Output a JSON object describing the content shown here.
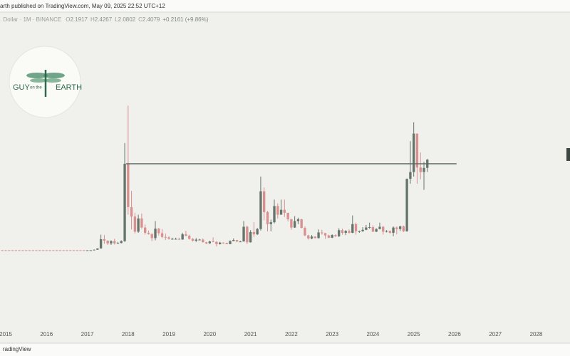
{
  "chart_data": {
    "type": "candlestick",
    "header": "arth published on TradingView.com, May 09, 2025 22:52 UTC+12",
    "symbol": ". Dollar · 1M · BINANCE",
    "ohlc_labels": [
      "O",
      "H",
      "L",
      "C"
    ],
    "ohlc_values": [
      2.1917,
      2.4267,
      2.0802,
      2.4079
    ],
    "change": "+0.2161 (+9.86%)",
    "logo": {
      "left": "GUY",
      "middle": "on the",
      "right": "EARTH"
    },
    "footer": "radingView",
    "up_color": "#66756b",
    "down_color": "#d9908f",
    "xlim": [
      2014.86,
      2028.83
    ],
    "xticks": [
      2015,
      2016,
      2017,
      2018,
      2019,
      2020,
      2021,
      2022,
      2023,
      2024,
      2025,
      2026,
      2027,
      2028
    ],
    "ylim": [
      -2.04,
      6.3
    ],
    "hline": {
      "value": 2.3,
      "x": [
        2017.95,
        2026.05
      ],
      "color": "#5e6b64"
    },
    "x": [
      2014.917,
      2015.0,
      2015.083,
      2015.167,
      2015.25,
      2015.333,
      2015.417,
      2015.5,
      2015.583,
      2015.667,
      2015.75,
      2015.833,
      2015.917,
      2016.0,
      2016.083,
      2016.167,
      2016.25,
      2016.333,
      2016.417,
      2016.5,
      2016.583,
      2016.667,
      2016.75,
      2016.833,
      2016.917,
      2017.0,
      2017.083,
      2017.167,
      2017.25,
      2017.333,
      2017.417,
      2017.5,
      2017.583,
      2017.667,
      2017.75,
      2017.833,
      2017.917,
      2018.0,
      2018.083,
      2018.167,
      2018.25,
      2018.333,
      2018.417,
      2018.5,
      2018.583,
      2018.667,
      2018.75,
      2018.833,
      2018.917,
      2019.0,
      2019.083,
      2019.167,
      2019.25,
      2019.333,
      2019.417,
      2019.5,
      2019.583,
      2019.667,
      2019.75,
      2019.833,
      2019.917,
      2020.0,
      2020.083,
      2020.167,
      2020.25,
      2020.333,
      2020.417,
      2020.5,
      2020.583,
      2020.667,
      2020.75,
      2020.833,
      2020.917,
      2021.0,
      2021.083,
      2021.167,
      2021.25,
      2021.333,
      2021.417,
      2021.5,
      2021.583,
      2021.667,
      2021.75,
      2021.833,
      2021.917,
      2022.0,
      2022.083,
      2022.167,
      2022.25,
      2022.333,
      2022.417,
      2022.5,
      2022.583,
      2022.667,
      2022.75,
      2022.833,
      2022.917,
      2023.0,
      2023.083,
      2023.167,
      2023.25,
      2023.333,
      2023.417,
      2023.5,
      2023.583,
      2023.667,
      2023.75,
      2023.833,
      2023.917,
      2024.0,
      2024.083,
      2024.167,
      2024.25,
      2024.333,
      2024.417,
      2024.5,
      2024.583,
      2024.667,
      2024.75,
      2024.833,
      2024.917,
      2025.0,
      2025.083,
      2025.167,
      2025.25,
      2025.333
    ],
    "open": [
      0.009,
      0.009,
      0.009,
      0.009,
      0.009,
      0.009,
      0.009,
      0.009,
      0.009,
      0.009,
      0.009,
      0.009,
      0.009,
      0.009,
      0.009,
      0.009,
      0.009,
      0.009,
      0.009,
      0.009,
      0.009,
      0.009,
      0.009,
      0.009,
      0.009,
      0.006,
      0.007,
      0.008,
      0.022,
      0.055,
      0.3,
      0.26,
      0.19,
      0.25,
      0.19,
      0.2,
      0.25,
      2.3,
      1.15,
      0.9,
      0.5,
      0.85,
      0.61,
      0.47,
      0.44,
      0.33,
      0.58,
      0.46,
      0.36,
      0.35,
      0.31,
      0.31,
      0.31,
      0.29,
      0.43,
      0.39,
      0.31,
      0.26,
      0.29,
      0.29,
      0.22,
      0.19,
      0.24,
      0.23,
      0.17,
      0.21,
      0.2,
      0.17,
      0.25,
      0.28,
      0.24,
      0.24,
      0.63,
      0.22,
      0.49,
      0.43,
      0.57,
      1.57,
      1.02,
      0.7,
      0.75,
      1.18,
      0.95,
      1.08,
      1.0,
      0.83,
      0.61,
      0.78,
      0.83,
      0.6,
      0.4,
      0.32,
      0.37,
      0.33,
      0.48,
      0.46,
      0.4,
      0.34,
      0.41,
      0.38,
      0.54,
      0.47,
      0.52,
      0.47,
      0.7,
      0.51,
      0.51,
      0.55,
      0.61,
      0.62,
      0.5,
      0.57,
      0.63,
      0.5,
      0.52,
      0.47,
      0.61,
      0.57,
      0.64,
      0.51,
      1.9,
      2.08,
      3.1,
      2.2,
      2.08,
      2.1917
    ],
    "high": [
      0.01,
      0.01,
      0.01,
      0.01,
      0.01,
      0.01,
      0.01,
      0.01,
      0.01,
      0.01,
      0.01,
      0.01,
      0.01,
      0.01,
      0.01,
      0.01,
      0.01,
      0.01,
      0.01,
      0.01,
      0.01,
      0.01,
      0.01,
      0.01,
      0.01,
      0.008,
      0.009,
      0.025,
      0.06,
      0.42,
      0.41,
      0.27,
      0.27,
      0.31,
      0.23,
      0.27,
      2.85,
      3.84,
      1.58,
      1.0,
      0.95,
      0.98,
      0.69,
      0.53,
      0.45,
      0.78,
      0.6,
      0.57,
      0.45,
      0.38,
      0.34,
      0.34,
      0.34,
      0.47,
      0.52,
      0.42,
      0.33,
      0.33,
      0.31,
      0.32,
      0.23,
      0.26,
      0.35,
      0.25,
      0.23,
      0.22,
      0.21,
      0.27,
      0.32,
      0.28,
      0.26,
      0.78,
      0.66,
      0.54,
      0.75,
      0.6,
      1.96,
      1.67,
      1.05,
      0.82,
      1.35,
      1.25,
      1.35,
      1.35,
      1.0,
      0.84,
      0.91,
      0.87,
      0.84,
      0.64,
      0.42,
      0.41,
      0.38,
      0.56,
      0.55,
      0.47,
      0.42,
      0.43,
      0.43,
      0.59,
      0.58,
      0.54,
      0.56,
      0.93,
      0.74,
      0.53,
      0.62,
      0.68,
      0.74,
      0.67,
      0.59,
      0.74,
      0.65,
      0.54,
      0.53,
      0.64,
      0.64,
      0.66,
      0.66,
      1.91,
      2.9,
      3.4,
      3.1,
      2.6,
      2.35,
      2.4267
    ],
    "low": [
      0.007,
      0.007,
      0.007,
      0.007,
      0.007,
      0.007,
      0.007,
      0.007,
      0.007,
      0.007,
      0.007,
      0.007,
      0.007,
      0.007,
      0.007,
      0.007,
      0.007,
      0.007,
      0.007,
      0.007,
      0.007,
      0.007,
      0.007,
      0.007,
      0.007,
      0.006,
      0.006,
      0.007,
      0.02,
      0.05,
      0.18,
      0.15,
      0.15,
      0.16,
      0.18,
      0.19,
      0.23,
      0.95,
      0.56,
      0.45,
      0.47,
      0.58,
      0.42,
      0.42,
      0.25,
      0.27,
      0.4,
      0.33,
      0.28,
      0.29,
      0.29,
      0.3,
      0.28,
      0.29,
      0.38,
      0.29,
      0.24,
      0.23,
      0.27,
      0.21,
      0.17,
      0.18,
      0.23,
      0.11,
      0.16,
      0.18,
      0.17,
      0.17,
      0.25,
      0.22,
      0.23,
      0.24,
      0.17,
      0.21,
      0.36,
      0.41,
      0.53,
      0.8,
      0.51,
      0.51,
      0.72,
      0.85,
      0.95,
      0.89,
      0.77,
      0.55,
      0.6,
      0.7,
      0.59,
      0.38,
      0.29,
      0.3,
      0.32,
      0.32,
      0.42,
      0.31,
      0.33,
      0.33,
      0.36,
      0.36,
      0.42,
      0.41,
      0.45,
      0.46,
      0.42,
      0.47,
      0.5,
      0.54,
      0.58,
      0.49,
      0.49,
      0.56,
      0.42,
      0.48,
      0.45,
      0.38,
      0.43,
      0.52,
      0.49,
      0.5,
      1.77,
      1.96,
      1.77,
      1.89,
      1.61,
      2.0802
    ],
    "close": [
      0.008,
      0.008,
      0.008,
      0.008,
      0.008,
      0.008,
      0.008,
      0.008,
      0.008,
      0.008,
      0.008,
      0.008,
      0.008,
      0.008,
      0.008,
      0.008,
      0.008,
      0.008,
      0.008,
      0.008,
      0.008,
      0.008,
      0.008,
      0.008,
      0.008,
      0.007,
      0.008,
      0.022,
      0.055,
      0.3,
      0.26,
      0.19,
      0.25,
      0.19,
      0.2,
      0.25,
      2.3,
      1.15,
      0.9,
      0.5,
      0.85,
      0.61,
      0.47,
      0.44,
      0.33,
      0.58,
      0.46,
      0.36,
      0.35,
      0.31,
      0.31,
      0.31,
      0.29,
      0.43,
      0.39,
      0.31,
      0.26,
      0.29,
      0.29,
      0.22,
      0.19,
      0.24,
      0.23,
      0.17,
      0.21,
      0.2,
      0.17,
      0.25,
      0.28,
      0.24,
      0.24,
      0.63,
      0.22,
      0.49,
      0.43,
      0.57,
      1.57,
      1.02,
      0.7,
      0.75,
      1.18,
      0.95,
      1.08,
      1.0,
      0.83,
      0.61,
      0.78,
      0.83,
      0.6,
      0.4,
      0.32,
      0.37,
      0.33,
      0.48,
      0.46,
      0.4,
      0.34,
      0.41,
      0.38,
      0.54,
      0.47,
      0.52,
      0.47,
      0.7,
      0.51,
      0.51,
      0.55,
      0.61,
      0.62,
      0.5,
      0.57,
      0.63,
      0.5,
      0.52,
      0.47,
      0.61,
      0.57,
      0.64,
      0.51,
      1.9,
      2.08,
      3.1,
      2.2,
      2.08,
      2.19,
      2.4079
    ]
  }
}
